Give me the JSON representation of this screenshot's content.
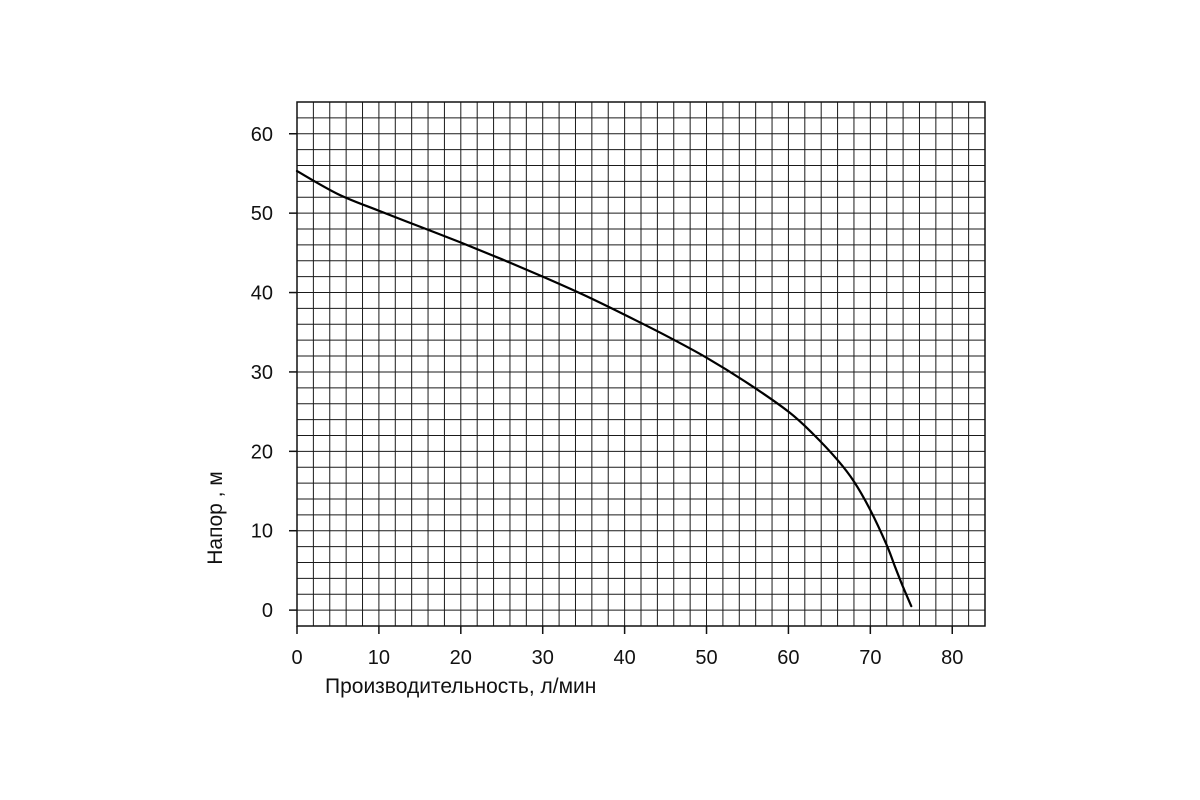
{
  "chart_data": {
    "type": "line",
    "xlabel": "Производительность, л/мин",
    "ylabel": "Напор , м",
    "x_ticks": [
      0,
      10,
      20,
      30,
      40,
      50,
      60,
      70,
      80
    ],
    "y_ticks": [
      0,
      10,
      20,
      30,
      40,
      50,
      60
    ],
    "xlim": [
      0,
      84
    ],
    "ylim": [
      -2,
      64
    ],
    "grid": true,
    "grid_step_x": 2,
    "grid_step_y": 2,
    "series": [
      {
        "color": "#000000",
        "x": [
          0,
          5,
          10,
          15,
          20,
          25,
          30,
          35,
          40,
          45,
          50,
          55,
          60,
          63,
          66,
          68,
          70,
          72,
          73,
          74,
          75
        ],
        "y": [
          55.3,
          52.4,
          50.3,
          48.3,
          46.3,
          44.2,
          42.0,
          39.7,
          37.2,
          34.6,
          31.8,
          28.6,
          25.0,
          22.2,
          18.9,
          16.2,
          12.6,
          8.2,
          5.5,
          2.9,
          0.5
        ]
      }
    ]
  }
}
